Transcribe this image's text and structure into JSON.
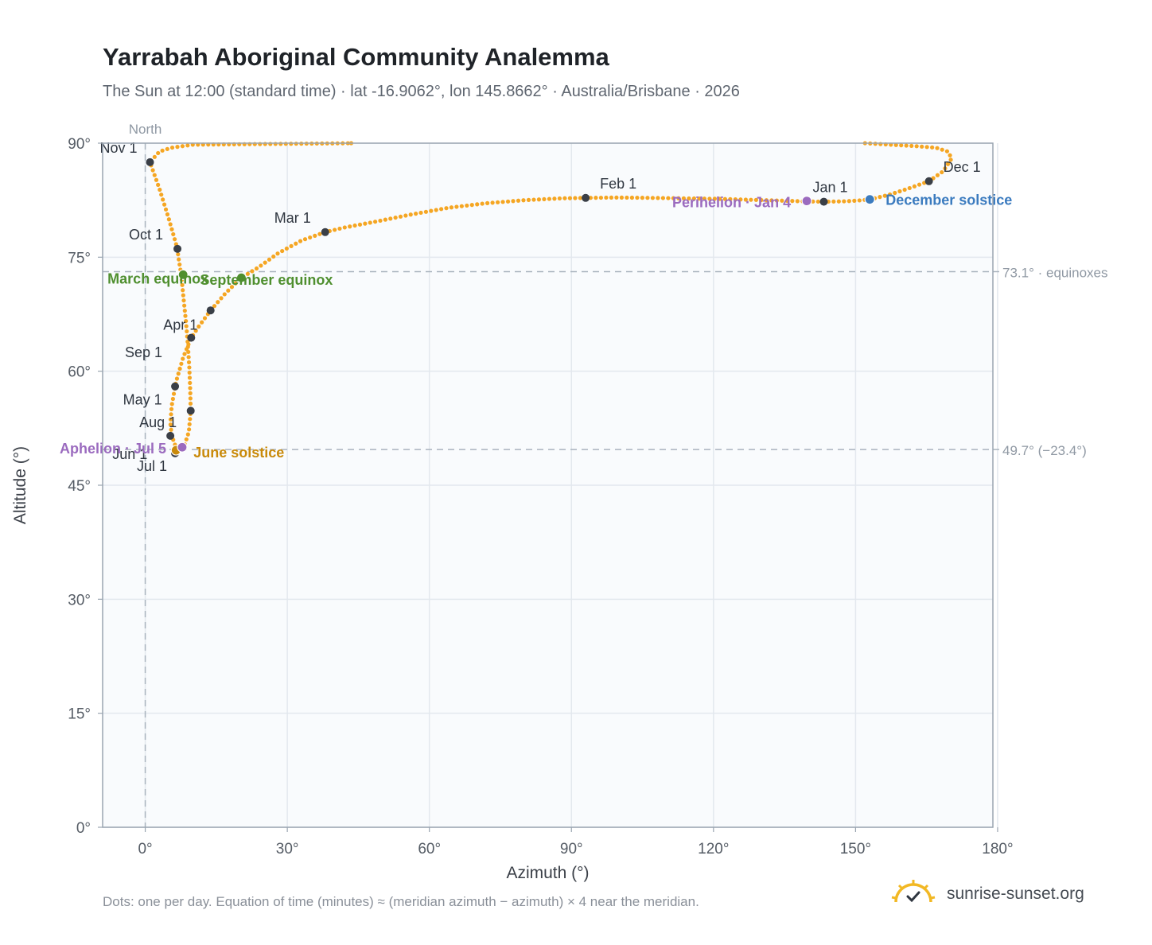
{
  "header": {
    "title": "Yarrabah Aboriginal Community Analemma",
    "subtitle": "The Sun at 12:00 (standard time) · lat -16.9062°, lon 145.8662° · Australia/Brisbane · 2026"
  },
  "footer": {
    "note": "Dots: one per day. Equation of time (minutes) ≈ (meridian azimuth − azimuth) × 4 near the meridian.",
    "brand": "sunrise-sunset.org"
  },
  "colors": {
    "curve": "#f5a623",
    "month_marker": "#3a3f47",
    "equinox": "#4f8f2f",
    "june_solstice": "#c98a0a",
    "december_solstice": "#3b7bbf",
    "apsis": "#9b6bbf",
    "guide": "#aab4be",
    "plot_bg": "#f9fbfd",
    "grid": "#e3e8ee"
  },
  "chart_data": {
    "type": "scatter",
    "xlabel": "Azimuth (°)",
    "ylabel": "Altitude (°)",
    "xlim": [
      -9,
      179
    ],
    "ylim": [
      0,
      90
    ],
    "x_ticks": [
      0,
      30,
      60,
      90,
      120,
      150,
      180
    ],
    "x_tick_labels": [
      "0°",
      "30°",
      "60°",
      "90°",
      "120°",
      "150°",
      "180°"
    ],
    "y_ticks": [
      0,
      15,
      30,
      45,
      60,
      75,
      90
    ],
    "y_tick_labels": [
      "0°",
      "15°",
      "30°",
      "45°",
      "60°",
      "75°",
      "90°"
    ],
    "grid": true,
    "north_marker": {
      "azimuth": 0,
      "label": "North"
    },
    "reference_lines": [
      {
        "altitude": 73.1,
        "label": "73.1° · equinoxes"
      },
      {
        "altitude": 49.7,
        "label": "49.7° (−23.4°)"
      }
    ],
    "series": [
      {
        "kind": "daily-path",
        "points": [
          [
            153.0,
            82.6
          ],
          [
            150.5,
            82.45
          ],
          [
            147.5,
            82.35
          ],
          [
            143.3,
            82.3
          ],
          [
            139.0,
            82.35
          ],
          [
            134.0,
            82.45
          ],
          [
            128.0,
            82.55
          ],
          [
            121.0,
            82.68
          ],
          [
            113.0,
            82.75
          ],
          [
            105.0,
            82.82
          ],
          [
            99.0,
            82.85
          ],
          [
            93.0,
            82.8
          ],
          [
            88.0,
            82.75
          ],
          [
            80.0,
            82.5
          ],
          [
            72.0,
            82.1
          ],
          [
            64.0,
            81.5
          ],
          [
            56.0,
            80.6
          ],
          [
            48.0,
            79.6
          ],
          [
            42.0,
            78.9
          ],
          [
            38.0,
            78.3
          ],
          [
            33.0,
            77.2
          ],
          [
            28.0,
            75.5
          ],
          [
            24.0,
            73.7
          ],
          [
            20.3,
            72.3
          ],
          [
            17.0,
            70.3
          ],
          [
            13.8,
            68.0
          ],
          [
            11.2,
            65.8
          ],
          [
            9.7,
            64.4
          ],
          [
            8.0,
            61.8
          ],
          [
            6.5,
            58.6
          ],
          [
            5.6,
            55.5
          ],
          [
            5.3,
            53.2
          ],
          [
            5.6,
            51.5
          ],
          [
            6.3,
            50.3
          ],
          [
            7.0,
            49.65
          ],
          [
            7.6,
            49.7
          ],
          [
            8.3,
            50.3
          ],
          [
            9.2,
            52.0
          ],
          [
            9.6,
            54.8
          ],
          [
            9.5,
            57.5
          ],
          [
            9.3,
            60.5
          ],
          [
            9.0,
            63.5
          ],
          [
            8.6,
            66.5
          ],
          [
            8.1,
            69.5
          ],
          [
            7.6,
            72.7
          ],
          [
            7.0,
            75.0
          ],
          [
            6.8,
            76.1
          ],
          [
            5.0,
            80.0
          ],
          [
            3.0,
            84.0
          ],
          [
            1.0,
            87.5
          ],
          [
            3.0,
            88.9
          ],
          [
            5.5,
            89.4
          ],
          [
            10.0,
            89.8
          ],
          [
            43.5,
            90.0
          ],
          [
            152.0,
            90.0
          ],
          [
            163.0,
            89.6
          ],
          [
            167.0,
            89.4
          ],
          [
            169.5,
            88.9
          ],
          [
            170.3,
            88.0
          ],
          [
            168.5,
            86.3
          ],
          [
            165.5,
            85.0
          ],
          [
            161.0,
            84.0
          ],
          [
            157.0,
            83.2
          ],
          [
            153.0,
            82.6
          ]
        ]
      },
      {
        "kind": "month-markers",
        "points": [
          {
            "x": 143.3,
            "y": 82.3,
            "label": "Jan 1"
          },
          {
            "x": 93.0,
            "y": 82.8,
            "label": "Feb 1"
          },
          {
            "x": 38.0,
            "y": 78.3,
            "label": "Mar 1"
          },
          {
            "x": 9.7,
            "y": 64.4,
            "label": "Apr 1"
          },
          {
            "x": 9.6,
            "y": 54.8,
            "label": "May 1"
          },
          {
            "x": 6.5,
            "y": 49.5,
            "label": "Jun 1"
          },
          {
            "x": 6.3,
            "y": 49.2,
            "label": "Jul 1"
          },
          {
            "x": 5.3,
            "y": 51.5,
            "label": "Aug 1"
          },
          {
            "x": 6.3,
            "y": 58.0,
            "label": "Sep 1"
          },
          {
            "x": 6.8,
            "y": 76.1,
            "label": "Oct 1"
          },
          {
            "x": 1.0,
            "y": 87.5,
            "label": "Nov 1"
          },
          {
            "x": 165.5,
            "y": 85.0,
            "label": "Dec 1"
          },
          {
            "x": 13.8,
            "y": 68.0,
            "label": ""
          }
        ]
      },
      {
        "kind": "events",
        "points": [
          {
            "x": 8.0,
            "y": 72.7,
            "label": "March equinox",
            "color": "#4f8f2f"
          },
          {
            "x": 20.3,
            "y": 72.3,
            "label": "September equinox",
            "color": "#4f8f2f"
          },
          {
            "x": 6.5,
            "y": 49.6,
            "label": "June solstice",
            "color": "#c98a0a"
          },
          {
            "x": 153.0,
            "y": 82.6,
            "label": "December solstice",
            "color": "#3b7bbf"
          },
          {
            "x": 139.7,
            "y": 82.4,
            "label": "Perihelion · Jan 4",
            "color": "#9b6bbf"
          },
          {
            "x": 7.8,
            "y": 50.0,
            "label": "Aphelion · Jul 5",
            "color": "#9b6bbf"
          }
        ]
      }
    ]
  }
}
